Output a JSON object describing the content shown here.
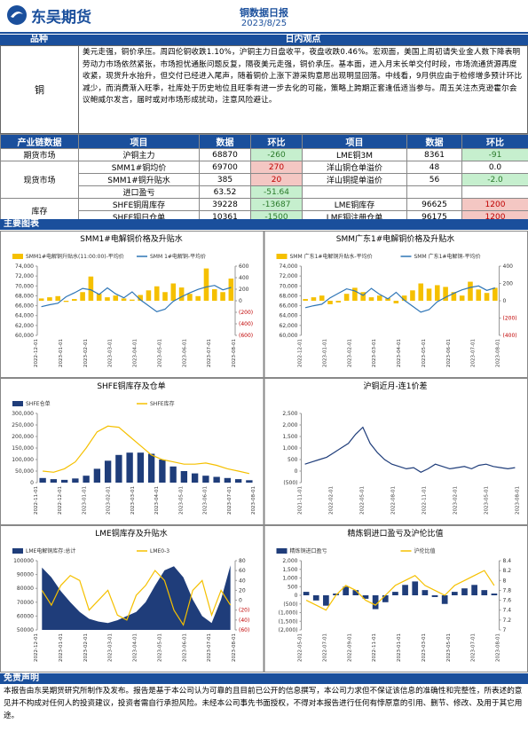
{
  "header": {
    "logo": "东吴期货",
    "title": "铜数据日报",
    "date": "2023/8/25"
  },
  "view": {
    "headers": [
      "品种",
      "日内观点"
    ],
    "variety": "铜",
    "text": "美元走强，铜价承压。周四伦铜收跌1.10%，沪铜主力日盘收平，夜盘收跌0.46%。宏观面，美国上周初请失业金人数下降表明劳动力市场依然紧张，市场担忧通胀问题反复，隔夜美元走强，铜价承压。基本面，进入月末长单交付时段，市场流通货源再度收紧，现货升水抬升，但交付已经进入尾声，随着铜价上涨下游采购意愿出现明显回落。中线看，9月供应由于检修增多预计环比减少，而消费渐入旺季，社库处于历史地位且旺季有进一步去化的可能，策略上跨期正套逢低适当参与。周五关注杰克逊霍尔会议鲍威尔发言，届时或对市场形成扰动，注意风险避让。"
  },
  "table": {
    "headers": [
      "产业链数据",
      "项目",
      "数据",
      "环比",
      "项目",
      "数据",
      "环比"
    ],
    "groups": [
      {
        "name": "期货市场",
        "rows": [
          [
            "沪铜主力",
            "68870",
            "-260",
            "LME铜3M",
            "8361",
            "-91"
          ]
        ]
      },
      {
        "name": "现货市场",
        "rows": [
          [
            "SMM1#铜均价",
            "69700",
            "270",
            "洋山铜仓单溢价",
            "48",
            "0.0"
          ],
          [
            "SMM1#铜升贴水",
            "385",
            "20",
            "洋山铜提单溢价",
            "56",
            "-2.0"
          ],
          [
            "进口盈亏",
            "63.52",
            "-51.64"
          ]
        ]
      },
      {
        "name": "库存",
        "rows": [
          [
            "SHFE铜周库存",
            "39228",
            "-13687",
            "LME铜库存",
            "96625",
            "1200"
          ],
          [
            "SHFE铜日仓单",
            "10361",
            "-1500",
            "LME铜注册仓单",
            "96175",
            "1200"
          ]
        ]
      }
    ]
  },
  "charts_heading": "主要图表",
  "charts": [
    {
      "title": "SMM1#电解铜价格及升贴水",
      "x_labels": [
        "2022-12-01",
        "2023-01-01",
        "2023-02-01",
        "2023-03-01",
        "2023-04-01",
        "2023-05-01",
        "2023-06-01",
        "2023-07-01",
        "2023-08-01"
      ],
      "ylim": [
        60000,
        74000
      ],
      "yticks": [
        {
          "value": 60000,
          "label": "60,000"
        },
        {
          "value": 62000,
          "label": "62,000"
        },
        {
          "value": 64000,
          "label": "64,000"
        },
        {
          "value": 66000,
          "label": "66,000"
        },
        {
          "value": 68000,
          "label": "68,000"
        },
        {
          "value": 70000,
          "label": "70,000"
        },
        {
          "value": 72000,
          "label": "72,000"
        },
        {
          "value": 74000,
          "label": "74,000"
        }
      ],
      "y2lim": [
        -600,
        600
      ],
      "y2ticks": [
        {
          "value": -600,
          "label": "(600)"
        },
        {
          "value": -400,
          "label": "(400)"
        },
        {
          "value": -200,
          "label": "(200)"
        },
        0,
        200,
        400,
        600
      ],
      "series": [
        {
          "name": "SMM1#电解铜升贴水(11:00:00)-平均价",
          "type": "bar",
          "axis": "y2",
          "color": "#f5c000",
          "values": [
            40,
            60,
            80,
            -20,
            30,
            150,
            420,
            120,
            60,
            90,
            40,
            20,
            100,
            180,
            250,
            150,
            300,
            230,
            120,
            80,
            560,
            200,
            150,
            385
          ]
        },
        {
          "name": "SMM 1#电解铜-平均价",
          "type": "line",
          "axis": "y",
          "color": "#2e75b6",
          "values": [
            65800,
            66200,
            66500,
            67800,
            68600,
            69500,
            69200,
            68300,
            69600,
            68400,
            67600,
            68800,
            67200,
            66000,
            64800,
            65300,
            66900,
            67800,
            68600,
            69300,
            69800,
            70100,
            69200,
            69700
          ]
        }
      ]
    },
    {
      "title": "SMM广东1#电解铜价格及升贴水",
      "x_labels": [
        "2022-12-01",
        "2023-01-01",
        "2023-02-01",
        "2023-03-01",
        "2023-04-01",
        "2023-05-01",
        "2023-06-01",
        "2023-07-01",
        "2023-08-01"
      ],
      "ylim": [
        60000,
        74000
      ],
      "yticks": [
        {
          "value": 60000,
          "label": "60,000"
        },
        {
          "value": 62000,
          "label": "62,000"
        },
        {
          "value": 64000,
          "label": "64,000"
        },
        {
          "value": 66000,
          "label": "66,000"
        },
        {
          "value": 68000,
          "label": "68,000"
        },
        {
          "value": 70000,
          "label": "70,000"
        },
        {
          "value": 72000,
          "label": "72,000"
        },
        {
          "value": 74000,
          "label": "74,000"
        }
      ],
      "y2lim": [
        -400,
        400
      ],
      "y2ticks": [
        {
          "value": -400,
          "label": "(400)"
        },
        {
          "value": -200,
          "label": "(200)"
        },
        0,
        200,
        400
      ],
      "series": [
        {
          "name": "SMM 广东1#电解铜升贴水-平均价",
          "type": "bar",
          "axis": "y2",
          "color": "#f5c000",
          "values": [
            20,
            40,
            60,
            -40,
            -20,
            80,
            150,
            100,
            40,
            60,
            30,
            -30,
            60,
            120,
            200,
            140,
            180,
            160,
            100,
            60,
            220,
            130,
            90,
            150
          ]
        },
        {
          "name": "SMM 广东1#电解铜-平均价",
          "type": "line",
          "axis": "y",
          "color": "#2e75b6",
          "values": [
            65600,
            66000,
            66300,
            67600,
            68500,
            69400,
            69000,
            68100,
            69500,
            68300,
            67400,
            68700,
            67100,
            65900,
            64700,
            65200,
            66800,
            67700,
            68500,
            69200,
            69700,
            70000,
            69100,
            69600
          ]
        }
      ]
    },
    {
      "title": "SHFE铜库存及仓单",
      "x_labels": [
        "2022-11-01",
        "2022-12-01",
        "2023-01-01",
        "2023-02-01",
        "2023-03-01",
        "2023-04-01",
        "2023-05-01",
        "2023-06-01",
        "2023-07-01",
        "2023-08-01"
      ],
      "ylim": [
        0,
        300000
      ],
      "yticks": [
        0,
        {
          "value": 50000,
          "label": "50,000"
        },
        {
          "value": 100000,
          "label": "100,000"
        },
        {
          "value": 150000,
          "label": "150,000"
        },
        {
          "value": 200000,
          "label": "200,000"
        },
        {
          "value": 250000,
          "label": "250,000"
        },
        {
          "value": 300000,
          "label": "300,000"
        }
      ],
      "series": [
        {
          "name": "SHFE仓单",
          "type": "bar",
          "axis": "y",
          "color": "#1f3d7a",
          "values": [
            20000,
            15000,
            12000,
            18000,
            30000,
            60000,
            95000,
            120000,
            130000,
            130000,
            125000,
            100000,
            70000,
            50000,
            40000,
            30000,
            25000,
            20000,
            15000,
            10361
          ]
        },
        {
          "name": "SHFE库存",
          "type": "line",
          "axis": "y",
          "color": "#f5c000",
          "values": [
            50000,
            45000,
            60000,
            90000,
            150000,
            220000,
            245000,
            240000,
            200000,
            160000,
            120000,
            100000,
            90000,
            80000,
            80000,
            85000,
            75000,
            60000,
            50000,
            39228
          ]
        }
      ]
    },
    {
      "title": "沪铜近月-连1价差",
      "x_labels": [
        "2021-11-01",
        "2022-02-01",
        "2022-05-01",
        "2022-08-01",
        "2022-11-01",
        "2023-02-01",
        "2023-05-01",
        "2023-08-01"
      ],
      "ylim": [
        -500,
        2500
      ],
      "yticks": [
        {
          "value": -500,
          "label": "(500)"
        },
        0,
        500,
        {
          "value": 1000,
          "label": "1,000"
        },
        {
          "value": 1500,
          "label": "1,500"
        },
        {
          "value": 2000,
          "label": "2,000"
        },
        {
          "value": 2500,
          "label": "2,500"
        }
      ],
      "series": [
        {
          "name": "沪铜近月-连1价差",
          "legend": false,
          "type": "line",
          "axis": "y",
          "color": "#1f3d7a",
          "values": [
            300,
            400,
            500,
            600,
            800,
            1000,
            1200,
            1600,
            1900,
            1200,
            800,
            500,
            300,
            200,
            100,
            150,
            -50,
            100,
            300,
            200,
            100,
            150,
            200,
            100,
            250,
            300,
            200,
            150,
            100,
            150
          ]
        }
      ]
    },
    {
      "title": "LME铜库存及升贴水",
      "x_labels": [
        "2022-12-01",
        "2023-01-01",
        "2023-02-01",
        "2023-03-01",
        "2023-04-01",
        "2023-05-01",
        "2023-06-01",
        "2023-07-01",
        "2023-08-01"
      ],
      "ylim": [
        50000,
        100000
      ],
      "yticks": [
        50000,
        60000,
        70000,
        80000,
        90000,
        100000
      ],
      "y2lim": [
        -60,
        80
      ],
      "y2ticks": [
        {
          "value": -60,
          "label": "(60)"
        },
        {
          "value": -40,
          "label": "(40)"
        },
        {
          "value": -20,
          "label": "(20)"
        },
        0,
        20,
        40,
        60,
        80
      ],
      "series": [
        {
          "name": "LME电解铜库存:总计",
          "type": "area",
          "axis": "y",
          "color": "#1f3d7a",
          "values": [
            95000,
            88000,
            78000,
            70000,
            63000,
            58000,
            56000,
            55000,
            57000,
            60000,
            63000,
            70000,
            82000,
            93000,
            96000,
            88000,
            72000,
            60000,
            55000,
            72000,
            96625
          ]
        },
        {
          "name": "LME0-3",
          "type": "line",
          "axis": "y2",
          "color": "#f5c000",
          "values": [
            20,
            -10,
            30,
            50,
            40,
            -20,
            0,
            20,
            -30,
            -40,
            10,
            30,
            60,
            40,
            -20,
            -50,
            20,
            40,
            -30,
            20,
            -10
          ]
        }
      ]
    },
    {
      "title": "精炼铜进口盈亏及沪伦比值",
      "x_labels": [
        "2022-05-01",
        "2022-07-01",
        "2022-09-01",
        "2022-11-01",
        "2023-01-01",
        "2023-03-01",
        "2023-05-01",
        "2023-07-01",
        "2023-08-01"
      ],
      "ylim": [
        -2000,
        2000
      ],
      "yticks": [
        {
          "value": -2000,
          "label": "(2,000)"
        },
        {
          "value": -1500,
          "label": "(1,500)"
        },
        {
          "value": -1000,
          "label": "(1,000)"
        },
        {
          "value": -500,
          "label": "(500)"
        },
        0,
        500,
        {
          "value": 1000,
          "label": "1,000"
        },
        {
          "value": 1500,
          "label": "1,500"
        },
        {
          "value": 2000,
          "label": "2,000"
        }
      ],
      "y2lim": [
        7,
        8.4
      ],
      "y2ticks": [
        7,
        7.2,
        7.4,
        7.6,
        7.8,
        8,
        8.2,
        8.4
      ],
      "series": [
        {
          "name": "精炼铜进口盈亏",
          "type": "bar",
          "axis": "y",
          "color": "#1f3d7a",
          "values": [
            200,
            -300,
            -600,
            100,
            500,
            300,
            -200,
            -800,
            -400,
            200,
            600,
            800,
            300,
            -100,
            -500,
            200,
            400,
            600,
            300,
            100
          ]
        },
        {
          "name": "沪伦比值",
          "type": "line",
          "axis": "y2",
          "color": "#f5c000",
          "values": [
            7.6,
            7.5,
            7.4,
            7.7,
            7.9,
            7.8,
            7.6,
            7.5,
            7.7,
            7.9,
            8.0,
            8.1,
            7.9,
            7.8,
            7.7,
            7.9,
            8.0,
            8.1,
            8.2,
            7.9
          ]
        }
      ]
    }
  ],
  "disclaimer": {
    "title": "免责声明",
    "text": "本报告由东吴期货研究所制作及发布。报告是基于本公司认为可靠的且目前已公开的信息撰写，本公司力求但不保证该信息的准确性和完整性，所表述的意见并不构成对任何人的投资建议，投资者需自行承担风险。未经本公司事先书面授权，不得对本报告进行任何有悖原意的引用、删节、修改、及用于其它用途。"
  }
}
